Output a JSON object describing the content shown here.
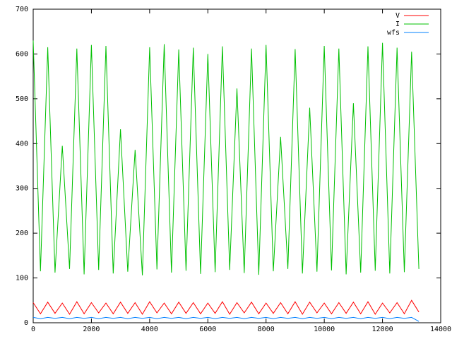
{
  "chart_data": {
    "type": "line",
    "xlim": [
      0,
      14000
    ],
    "ylim": [
      0,
      700
    ],
    "xticks": [
      0,
      2000,
      4000,
      6000,
      8000,
      10000,
      12000,
      14000
    ],
    "yticks": [
      0,
      100,
      200,
      300,
      400,
      500,
      600,
      700
    ],
    "legend": "top-right",
    "x": [
      0,
      250,
      500,
      750,
      1000,
      1250,
      1500,
      1750,
      2000,
      2250,
      2500,
      2750,
      3000,
      3250,
      3500,
      3750,
      4000,
      4250,
      4500,
      4750,
      5000,
      5250,
      5500,
      5750,
      6000,
      6250,
      6500,
      6750,
      7000,
      7250,
      7500,
      7750,
      8000,
      8250,
      8500,
      8750,
      9000,
      9250,
      9500,
      9750,
      10000,
      10250,
      10500,
      10750,
      11000,
      11250,
      11500,
      11750,
      12000,
      12250,
      12500,
      12750,
      13000,
      13250
    ],
    "series": [
      {
        "name": "V",
        "color": "#ff0000",
        "values": [
          45,
          20,
          46,
          21,
          44,
          19,
          47,
          20,
          45,
          22,
          44,
          20,
          46,
          21,
          45,
          19,
          47,
          22,
          44,
          20,
          46,
          21,
          45,
          20,
          44,
          21,
          47,
          19,
          45,
          22,
          46,
          20,
          44,
          21,
          45,
          20,
          47,
          19,
          46,
          22,
          44,
          20,
          45,
          21,
          46,
          20,
          47,
          19,
          44,
          22,
          45,
          20,
          50,
          24
        ]
      },
      {
        "name": "I",
        "color": "#00c000",
        "values": [
          630,
          115,
          615,
          112,
          395,
          120,
          612,
          108,
          620,
          118,
          618,
          110,
          432,
          114,
          386,
          106,
          615,
          119,
          622,
          112,
          610,
          116,
          614,
          109,
          600,
          113,
          617,
          118,
          523,
          111,
          612,
          107,
          620,
          115,
          415,
          120,
          611,
          110,
          480,
          114,
          618,
          117,
          612,
          108,
          490,
          112,
          617,
          116,
          625,
          110,
          614,
          113,
          605,
          120
        ]
      },
      {
        "name": "wfs",
        "color": "#0080ff",
        "values": [
          12,
          9,
          12,
          10,
          12,
          9,
          12,
          10,
          12,
          9,
          12,
          10,
          12,
          9,
          12,
          10,
          12,
          9,
          12,
          10,
          12,
          9,
          12,
          10,
          12,
          9,
          12,
          10,
          12,
          9,
          12,
          10,
          12,
          9,
          12,
          10,
          12,
          9,
          12,
          10,
          12,
          9,
          12,
          10,
          12,
          9,
          12,
          10,
          12,
          9,
          12,
          10,
          12,
          3
        ]
      }
    ]
  }
}
